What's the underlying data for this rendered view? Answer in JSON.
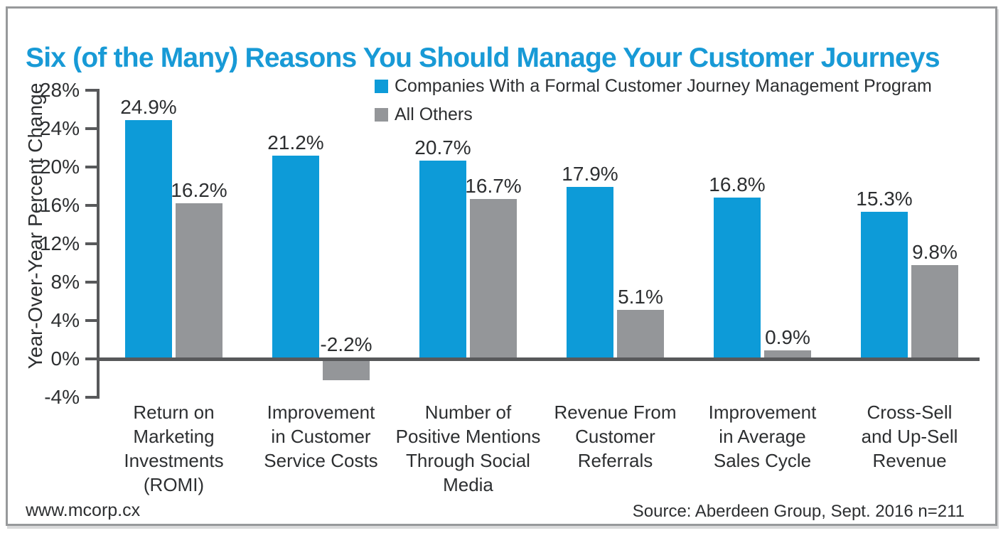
{
  "title": "Six (of the Many) Reasons You Should Manage Your Customer Journeys",
  "legend": [
    {
      "label": "Companies With a Formal Customer Journey Management Program",
      "color": "#0d9bd8"
    },
    {
      "label": "All Others",
      "color": "#949699"
    }
  ],
  "footer": {
    "left": "www.mcorp.cx",
    "right": "Source: Aberdeen Group, Sept. 2016 n=211"
  },
  "colors": {
    "title_blue": "#189ad6",
    "bar_blue": "#0d9bd8",
    "bar_gray": "#949699",
    "axis_gray": "#58595b",
    "text_dark": "#2d2f31",
    "frame_border": "#97999b"
  },
  "chart_data": {
    "type": "bar",
    "title": "Six (of the Many) Reasons You Should Manage Your Customer Journeys",
    "xlabel": "",
    "ylabel": "Year-Over-Year Percent Change",
    "ylim": [
      -4,
      28
    ],
    "ytick_step": 4,
    "ytick_labels": [
      "28%",
      "24%",
      "20%",
      "16%",
      "12%",
      "8%",
      "4%",
      "0%",
      "-4%"
    ],
    "grid": false,
    "legend_position": "top",
    "categories": [
      [
        "Return on",
        "Marketing",
        "Investments",
        "(ROMI)"
      ],
      [
        "Improvement",
        "in Customer",
        "Service Costs"
      ],
      [
        "Number of",
        "Positive Mentions",
        "Through Social",
        "Media"
      ],
      [
        "Revenue From",
        "Customer",
        "Referrals"
      ],
      [
        "Improvement",
        "in Average",
        "Sales Cycle"
      ],
      [
        "Cross-Sell",
        "and Up-Sell",
        "Revenue"
      ]
    ],
    "series": [
      {
        "name": "Companies With a Formal Customer Journey Management Program",
        "color": "#0d9bd8",
        "values": [
          24.9,
          21.2,
          20.7,
          17.9,
          16.8,
          15.3
        ],
        "labels": [
          "24.9%",
          "21.2%",
          "20.7%",
          "17.9%",
          "16.8%",
          "15.3%"
        ]
      },
      {
        "name": "All Others",
        "color": "#949699",
        "values": [
          16.2,
          -2.2,
          16.7,
          5.1,
          0.9,
          9.8
        ],
        "labels": [
          "16.2%",
          "-2.2%",
          "16.7%",
          "5.1%",
          "0.9%",
          "9.8%"
        ]
      }
    ]
  }
}
